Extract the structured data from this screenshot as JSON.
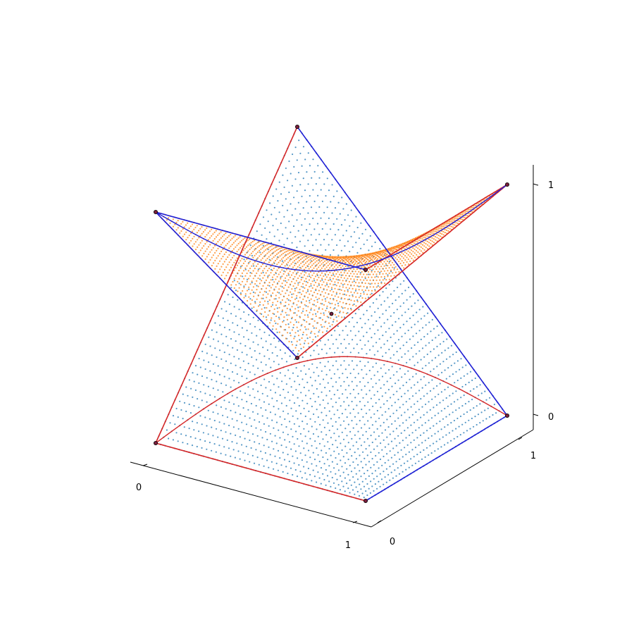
{
  "chart_data": {
    "type": "scatter",
    "title": "",
    "xlabel": "",
    "ylabel": "",
    "zlabel": "",
    "xlim": [
      0,
      1
    ],
    "ylim": [
      0,
      1
    ],
    "zlim": [
      0,
      1
    ],
    "x_ticks": [
      "0",
      "1"
    ],
    "y_ticks": [
      "0",
      "1"
    ],
    "z_ticks": [
      "0",
      "1"
    ],
    "grid": false,
    "surfaces": [
      {
        "kind": "bilinear-surface-points",
        "color": "#1f77b4",
        "edge_color": "#0b2a44",
        "control_points": [
          {
            "u": 0,
            "v": 0,
            "x": 0,
            "y": 0,
            "z": 0
          },
          {
            "u": 1,
            "v": 0,
            "x": 1,
            "y": 0,
            "z": 0
          },
          {
            "u": 0,
            "v": 1,
            "x": 0,
            "y": 1,
            "z": 1
          },
          {
            "u": 1,
            "v": 1,
            "x": 1,
            "y": 1,
            "z": 0
          }
        ]
      },
      {
        "kind": "bilinear-surface-points",
        "color": "#ff7f0e",
        "edge_color": "#3a1f00",
        "control_points": [
          {
            "u": 0,
            "v": 0,
            "x": 0,
            "y": 0,
            "z": 1
          },
          {
            "u": 1,
            "v": 0,
            "x": 1,
            "y": 0,
            "z": 1
          },
          {
            "u": 0,
            "v": 1,
            "x": 0,
            "y": 1,
            "z": 0
          },
          {
            "u": 1,
            "v": 1,
            "x": 1,
            "y": 1,
            "z": 1
          }
        ]
      }
    ],
    "curves_color_primary": "#d62728",
    "curves_color_secondary": "#1f1fd6"
  }
}
